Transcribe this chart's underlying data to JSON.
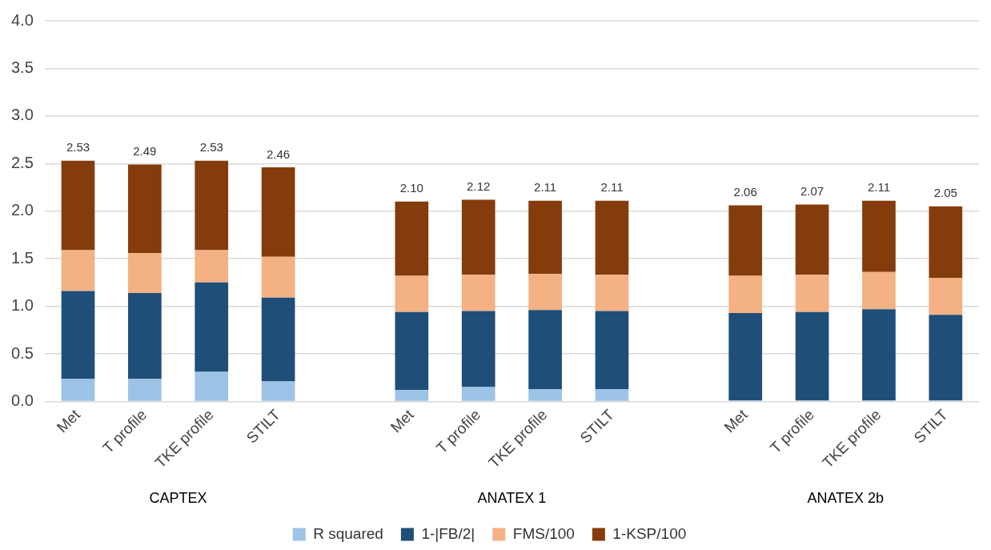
{
  "chart_data": {
    "type": "bar",
    "stacked": true,
    "categories": [
      "Met",
      "T profile",
      "TKE profile",
      "STILT",
      null,
      "Met",
      "T profile",
      "TKE profile",
      "STILT",
      null,
      "Met",
      "T profile",
      "TKE profile",
      "STILT"
    ],
    "series": [
      {
        "name": "R squared",
        "color": "#9dc3e6",
        "values": [
          0.24,
          0.24,
          0.31,
          0.21,
          null,
          0.12,
          0.15,
          0.13,
          0.13,
          null,
          0.01,
          0.01,
          0.01,
          0.01
        ]
      },
      {
        "name": "1-|FB/2|",
        "color": "#1f4e79",
        "values": [
          0.92,
          0.9,
          0.94,
          0.88,
          null,
          0.82,
          0.8,
          0.83,
          0.82,
          null,
          0.92,
          0.93,
          0.96,
          0.9
        ]
      },
      {
        "name": "FMS/100",
        "color": "#f4b183",
        "values": [
          0.43,
          0.42,
          0.34,
          0.43,
          null,
          0.38,
          0.38,
          0.38,
          0.38,
          null,
          0.39,
          0.39,
          0.39,
          0.39
        ]
      },
      {
        "name": "1-KSP/100",
        "color": "#843c0c",
        "values": [
          0.94,
          0.93,
          0.94,
          0.94,
          null,
          0.78,
          0.79,
          0.77,
          0.78,
          null,
          0.74,
          0.74,
          0.75,
          0.75
        ]
      }
    ],
    "totals": [
      "2.53",
      "2.49",
      "2.53",
      "2.46",
      null,
      "2.10",
      "2.12",
      "2.11",
      "2.11",
      null,
      "2.06",
      "2.07",
      "2.11",
      "2.05"
    ],
    "annotations": [
      "CAPTEX",
      "ANATEX 1",
      "ANATEX 2b"
    ],
    "ylim": [
      0,
      4
    ],
    "yticks": [
      {
        "value": 0,
        "label": "0.0"
      },
      {
        "value": 0.5,
        "label": "0.5"
      },
      {
        "value": 1,
        "label": "1.0"
      },
      {
        "value": 1.5,
        "label": "1.5"
      },
      {
        "value": 2,
        "label": "2.0"
      },
      {
        "value": 2.5,
        "label": "2.5"
      },
      {
        "value": 3,
        "label": "3.0"
      },
      {
        "value": 3.5,
        "label": "3.5"
      },
      {
        "value": 4,
        "label": "4.0"
      }
    ],
    "grid": "y",
    "legend": "bottom"
  }
}
